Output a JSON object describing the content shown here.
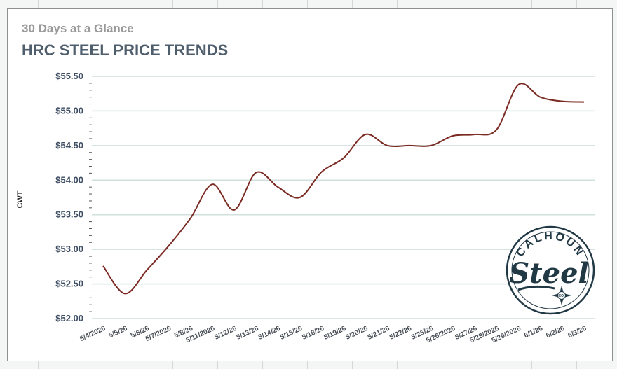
{
  "header": {
    "subtitle": "30 Days at a Glance",
    "title": "HRC STEEL PRICE TRENDS"
  },
  "logo": {
    "top_text": "CALHOUN",
    "script_text": "Steel",
    "badge_text": "CO."
  },
  "colors": {
    "line": "#7a2a22",
    "title": "#4f5e6d",
    "grid": "#cfe0dd",
    "logo": "#213845"
  },
  "chart_data": {
    "type": "line",
    "title": "HRC STEEL PRICE TRENDS",
    "xlabel": "",
    "ylabel": "CWT",
    "ylim": [
      52.0,
      55.5
    ],
    "ytick_labels": [
      "$55.50",
      "$55.00",
      "$54.50",
      "$54.00",
      "$53.50",
      "$53.00",
      "$52.50",
      "$52.00"
    ],
    "grid": true,
    "legend": "none",
    "x": [
      "5/4/2026",
      "5/5/26",
      "5/6/26",
      "5/7/2026",
      "5/8/26",
      "5/11/2026",
      "5/12/26",
      "5/13/26",
      "5/14/26",
      "5/15/26",
      "5/18/26",
      "5/19/26",
      "5/20/26",
      "5/21/26",
      "5/22/26",
      "5/25/26",
      "5/26/2026",
      "5/27/26",
      "5/28/2026",
      "5/29/2026",
      "6/1/26",
      "6/2/26",
      "6/3/26"
    ],
    "series": [
      {
        "values": [
          52.76,
          52.36,
          52.7,
          53.05,
          53.45,
          53.94,
          53.57,
          54.11,
          53.9,
          53.75,
          54.12,
          54.32,
          54.66,
          54.5,
          54.5,
          54.5,
          54.64,
          54.66,
          54.73,
          55.38,
          55.2,
          55.14,
          55.13
        ]
      }
    ]
  }
}
